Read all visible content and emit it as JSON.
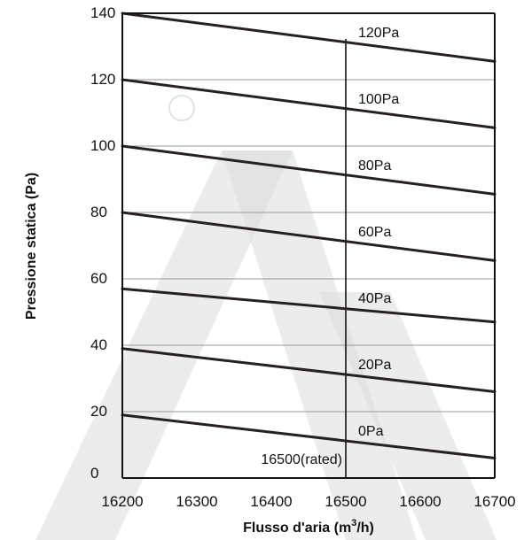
{
  "chart_data": {
    "type": "line",
    "xlabel": "Flusso d'aria (m",
    "xlabel_sup": "3",
    "xlabel_tail": "/h)",
    "ylabel": "Pressione statica (Pa)",
    "xlim": [
      16200,
      16700
    ],
    "ylim": [
      0,
      140
    ],
    "x_ticks": [
      "16200",
      "16300",
      "16400",
      "16500",
      "16600",
      "16700"
    ],
    "y_ticks": [
      "0",
      "20",
      "40",
      "60",
      "80",
      "100",
      "120",
      "140"
    ],
    "grid": "horizontal",
    "rated_line": {
      "x": 16500,
      "label": "16500(rated)"
    },
    "series": [
      {
        "name": "0Pa",
        "x": [
          16200,
          16700
        ],
        "y": [
          19,
          6
        ]
      },
      {
        "name": "20Pa",
        "x": [
          16200,
          16700
        ],
        "y": [
          39,
          26
        ]
      },
      {
        "name": "40Pa",
        "x": [
          16200,
          16700
        ],
        "y": [
          57,
          47
        ]
      },
      {
        "name": "60Pa",
        "x": [
          16200,
          16700
        ],
        "y": [
          80,
          65.5
        ]
      },
      {
        "name": "80Pa",
        "x": [
          16200,
          16700
        ],
        "y": [
          100,
          85.5
        ]
      },
      {
        "name": "100Pa",
        "x": [
          16200,
          16700
        ],
        "y": [
          120,
          105.5
        ]
      },
      {
        "name": "120Pa",
        "x": [
          16200,
          16700
        ],
        "y": [
          140,
          125.5
        ]
      }
    ],
    "colors": {
      "line": "#2a1f1f",
      "grid": "#999999",
      "axis": "#111111"
    }
  }
}
